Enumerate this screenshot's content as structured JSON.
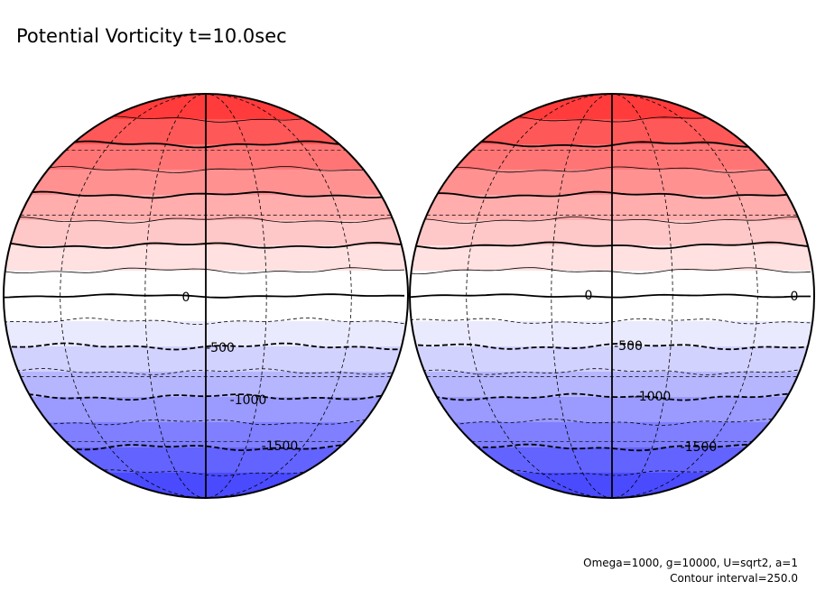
{
  "chart_data": {
    "type": "contour",
    "title": "Potential Vorticity t=10.0sec",
    "variable": "Potential Vorticity",
    "time": "10.0sec",
    "projection": "orthographic",
    "hemispheres": [
      "left",
      "right"
    ],
    "contour_interval": 250.0,
    "level_min": -2000,
    "level_max": 2000,
    "levels": [
      2000,
      1750,
      1500,
      1250,
      1000,
      750,
      500,
      250,
      0,
      -250,
      -500,
      -750,
      -1000,
      -1250,
      -1500,
      -1750,
      -2000
    ],
    "contour_labels_left": [
      "0",
      "-500",
      "-1000",
      "-1500"
    ],
    "contour_labels_right": [
      "0",
      "0",
      "-500",
      "-1000",
      "-1500"
    ],
    "fill_colors": [
      "#ff3b3b",
      "#ff5858",
      "#ff7575",
      "#ff9191",
      "#ffadad",
      "#ffc8c8",
      "#ffe1e1",
      "#ffffff",
      "#ffffff",
      "#eaeaff",
      "#d2d2ff",
      "#b6b6ff",
      "#9a9aff",
      "#7f7fff",
      "#6363ff",
      "#4a4aff"
    ],
    "color_scale": "red-white-blue",
    "parameters": "Omega=1000, g=10000, U=sqrt2, a=1",
    "interval_text": "Contour interval=250.0"
  }
}
